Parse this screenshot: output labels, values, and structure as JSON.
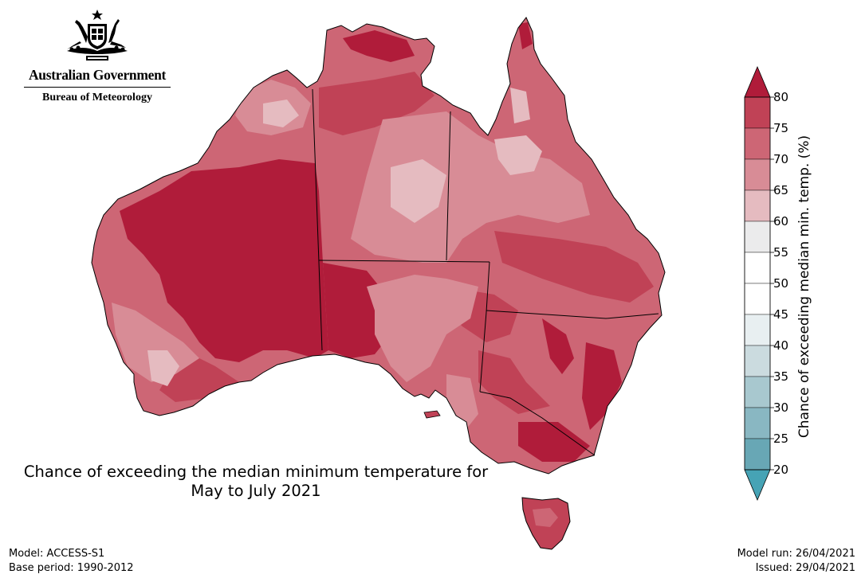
{
  "header": {
    "gov_name": "Australian Government",
    "bureau_name": "Bureau of Meteorology",
    "crest_icon": "commonwealth-coat-of-arms"
  },
  "map": {
    "title": "Chance of exceeding the median minimum temperature for\nMay to July 2021",
    "region": "Australia",
    "border_color": "#000000"
  },
  "colorbar": {
    "label": "Chance of exceeding median min. temp. (%)",
    "ticks": [
      "80",
      "75",
      "70",
      "65",
      "60",
      "55",
      "50",
      "45",
      "40",
      "35",
      "30",
      "25",
      "20"
    ],
    "bins": [
      {
        "range": "75-80",
        "color": "#c04256"
      },
      {
        "range": "70-75",
        "color": "#cd6675"
      },
      {
        "range": "65-70",
        "color": "#d88c96"
      },
      {
        "range": "60-65",
        "color": "#e5bbc0"
      },
      {
        "range": "55-60",
        "color": "#ebebec"
      },
      {
        "range": "50-55",
        "color": "#ffffff"
      },
      {
        "range": "45-50",
        "color": "#ffffff"
      },
      {
        "range": "40-45",
        "color": "#e8eff1"
      },
      {
        "range": "35-40",
        "color": "#cbdbdf"
      },
      {
        "range": "30-35",
        "color": "#a8c8cf"
      },
      {
        "range": "25-30",
        "color": "#89b7c2"
      },
      {
        "range": "20-25",
        "color": "#68a7b5"
      }
    ],
    "over_color": "#b01c3a",
    "under_color": "#46a3b5"
  },
  "footer": {
    "model": "Model: ACCESS-S1",
    "base_period": "Base period: 1990-2012",
    "model_run": "Model run: 26/04/2021",
    "issued": "Issued: 29/04/2021"
  }
}
